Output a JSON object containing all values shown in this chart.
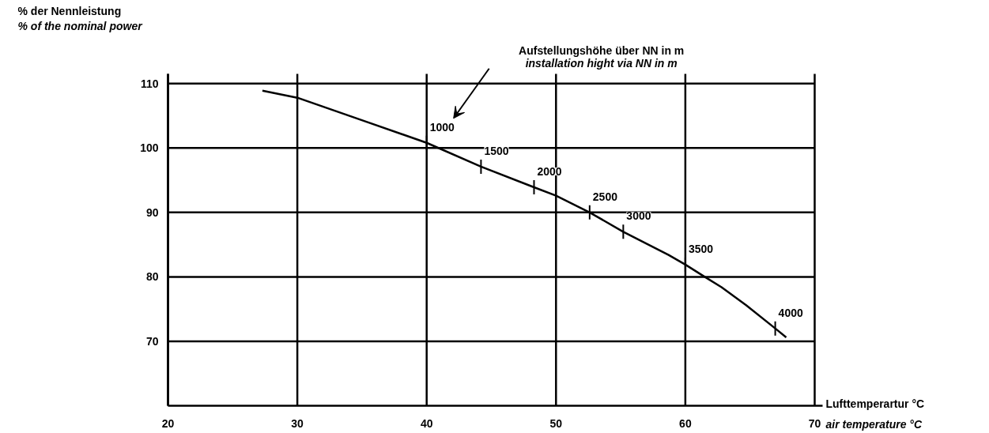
{
  "chart_data": {
    "type": "line",
    "x": [
      27.3,
      30,
      35.3,
      40,
      44.2,
      48.3,
      50,
      52.6,
      55.2,
      58.7,
      60,
      61.5,
      62.8,
      64.7,
      66.95,
      67.8
    ],
    "series": [
      {
        "color": "#000000",
        "values": [
          108.9,
          107.8,
          104.1,
          100.8,
          97.1,
          93.9,
          92.6,
          90.0,
          87.0,
          83.4,
          81.9,
          80.0,
          78.4,
          75.6,
          72.0,
          70.6
        ]
      }
    ],
    "xlim": [
      20,
      70
    ],
    "ylim": [
      60,
      111.5
    ],
    "xticks": [
      20,
      30,
      40,
      50,
      60,
      70
    ],
    "yticks": [
      70,
      80,
      90,
      100,
      110
    ],
    "xlabel": "Lufttemperartur °C\nair temperature °C",
    "ylabel": "% der Nennleistung\n% of the nominal power",
    "grid": true,
    "marker": "none",
    "line_style": "solid",
    "annotations": [
      "Aufstellungshöhe über NN in m\ninstallation hight via NN in m",
      {
        "text": "1000",
        "x": 40,
        "y": 100.8
      },
      {
        "text": "1500",
        "x": 44.2,
        "y": 97.1
      },
      {
        "text": "2000",
        "x": 48.3,
        "y": 93.9
      },
      {
        "text": "2500",
        "x": 52.6,
        "y": 90.0
      },
      {
        "text": "3000",
        "x": 55.2,
        "y": 87.0
      },
      {
        "text": "3500",
        "x": 60,
        "y": 81.9
      },
      {
        "text": "4000",
        "x": 66.95,
        "y": 72.0
      }
    ]
  }
}
